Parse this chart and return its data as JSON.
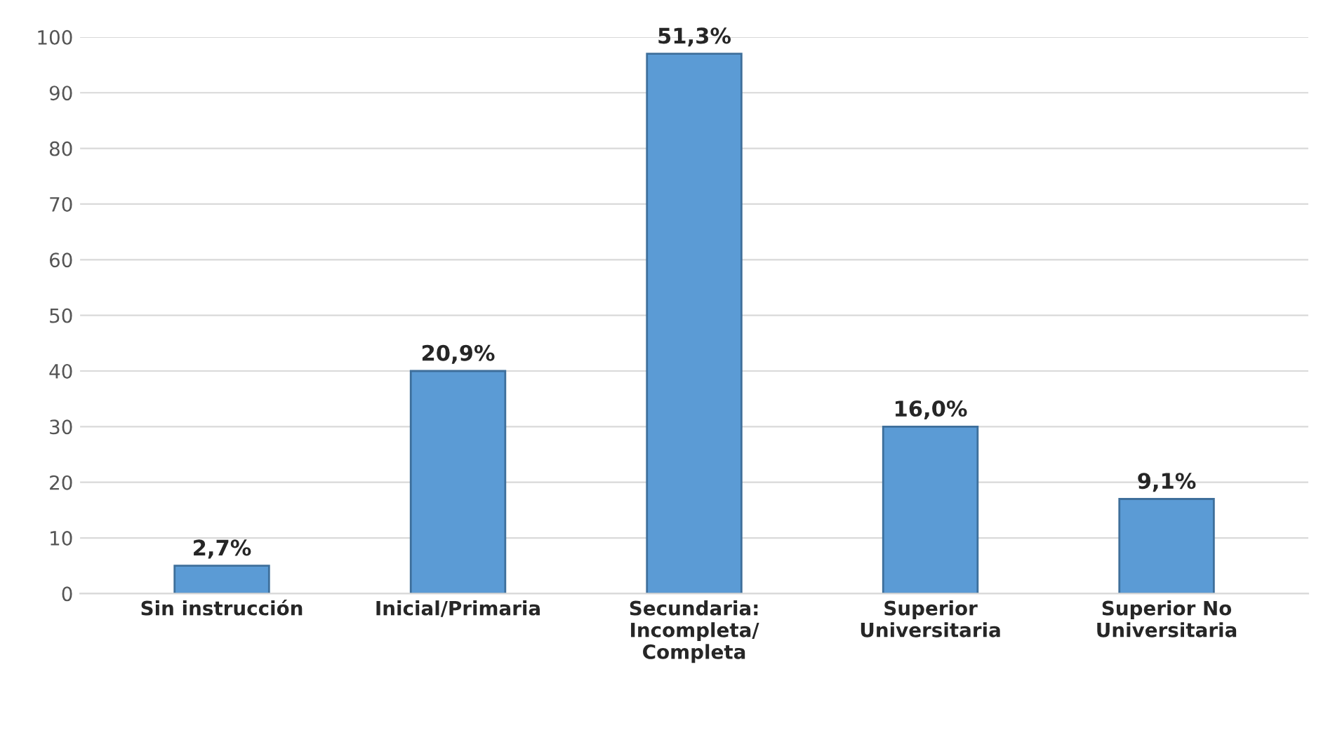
{
  "chart_data": {
    "type": "bar",
    "categories": [
      "Sin instrucción",
      "Inicial/Primaria",
      "Secundaria:\nIncompleta/\nCompleta",
      "Superior\nUniversitaria",
      "Superior No\nUniversitaria"
    ],
    "values": [
      5,
      40,
      97,
      30,
      17
    ],
    "annotations": [
      {
        "text": "2,7%",
        "x": "Sin instrucción",
        "y": 5
      },
      {
        "text": "20,9%",
        "x": "Inicial/Primaria",
        "y": 40
      },
      {
        "text": "51,3%",
        "x": "Secundaria:\nIncompleta/\nCompleta",
        "y": 97
      },
      {
        "text": "16,0%",
        "x": "Superior\nUniversitaria",
        "y": 30
      },
      {
        "text": "9,1%",
        "x": "Superior No\nUniversitaria",
        "y": 17
      }
    ],
    "color": "#5b9bd5",
    "ylim": [
      0,
      100
    ],
    "yticks": [
      0,
      10,
      20,
      30,
      40,
      50,
      60,
      70,
      80,
      90,
      100
    ],
    "grid": "y",
    "legend": false
  }
}
